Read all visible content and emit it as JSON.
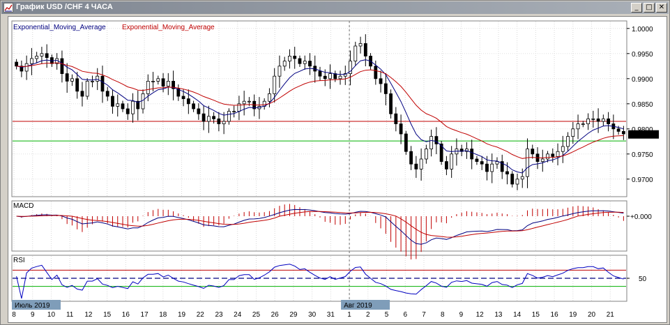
{
  "window": {
    "title": "График USD /CHF  4 ЧАСА",
    "minimize_glyph": "_",
    "maximize_glyph": "□",
    "close_glyph": "✕"
  },
  "main_panel": {
    "legend": [
      {
        "text": "Exponential_Moving_Average",
        "color": "#000080"
      },
      {
        "text": "Exponential_Moving_Average",
        "color": "#c00000"
      }
    ],
    "price_levels": [
      "1.0000",
      "0.9950",
      "0.9900",
      "0.9850",
      "0.9800",
      "0.9750",
      "0.9700"
    ],
    "current_price": "0.9789",
    "horizontal_lines": [
      {
        "price": 0.9815,
        "color": "#c00000"
      },
      {
        "price": 0.9776,
        "color": "#00b000"
      }
    ]
  },
  "macd_panel": {
    "label": "MACD",
    "level": "+0.000"
  },
  "rsi_panel": {
    "label": "RSI",
    "level": "50"
  },
  "time_axis": {
    "month_labels": [
      "Июль 2019",
      "Авг 2019"
    ],
    "days": [
      "8",
      "9",
      "10",
      "11",
      "12",
      "15",
      "16",
      "17",
      "18",
      "19",
      "22",
      "23",
      "24",
      "25",
      "26",
      "29",
      "30",
      "31",
      "1",
      "2",
      "5",
      "6",
      "7",
      "8",
      "9",
      "12",
      "13",
      "14",
      "15",
      "16",
      "19",
      "20",
      "21"
    ]
  },
  "chart_data": {
    "type": "candlestick",
    "symbol": "USD/CHF",
    "timeframe": "4 ЧАСА",
    "ylim": [
      0.9665,
      1.0015
    ],
    "current": 0.9789,
    "closes": [
      0.9925,
      0.9915,
      0.993,
      0.994,
      0.9945,
      0.995,
      0.9942,
      0.993,
      0.994,
      0.991,
      0.9895,
      0.99,
      0.9875,
      0.9865,
      0.9895,
      0.9895,
      0.9905,
      0.9875,
      0.9865,
      0.9845,
      0.985,
      0.984,
      0.983,
      0.9855,
      0.984,
      0.987,
      0.9895,
      0.9895,
      0.99,
      0.9885,
      0.9895,
      0.988,
      0.9865,
      0.986,
      0.985,
      0.984,
      0.983,
      0.9815,
      0.9825,
      0.982,
      0.981,
      0.9815,
      0.9835,
      0.9835,
      0.985,
      0.9855,
      0.9855,
      0.984,
      0.9845,
      0.9855,
      0.987,
      0.9905,
      0.9925,
      0.9935,
      0.9945,
      0.994,
      0.993,
      0.9935,
      0.9925,
      0.9915,
      0.9905,
      0.99,
      0.991,
      0.99,
      0.9905,
      0.991,
      0.9935,
      0.9965,
      0.997,
      0.9945,
      0.9925,
      0.99,
      0.989,
      0.987,
      0.983,
      0.981,
      0.979,
      0.9755,
      0.973,
      0.972,
      0.974,
      0.976,
      0.9785,
      0.977,
      0.9735,
      0.972,
      0.975,
      0.976,
      0.9755,
      0.976,
      0.974,
      0.9735,
      0.973,
      0.9715,
      0.973,
      0.9735,
      0.9715,
      0.971,
      0.969,
      0.97,
      0.9705,
      0.976,
      0.975,
      0.9735,
      0.974,
      0.975,
      0.9745,
      0.9755,
      0.9765,
      0.9785,
      0.98,
      0.981,
      0.981,
      0.982,
      0.982,
      0.9815,
      0.982,
      0.981,
      0.98,
      0.9795,
      0.979
    ]
  }
}
